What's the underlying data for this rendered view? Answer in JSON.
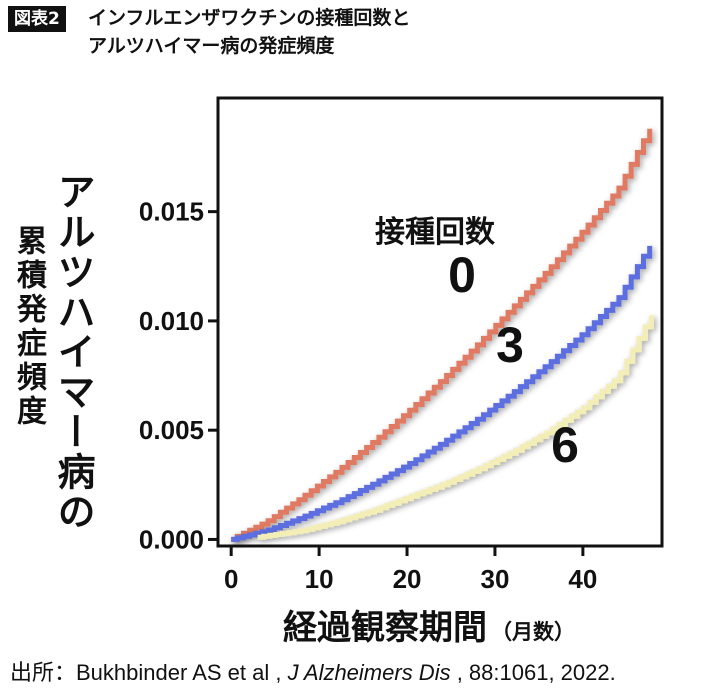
{
  "figure": {
    "tag": "図表2",
    "title_line1": "インフルエンザワクチンの接種回数と",
    "title_line2": "アルツハイマー病の発症頻度"
  },
  "source": {
    "prefix": "出所：Bukhbinder AS et al , ",
    "journal": "J Alzheimers Dis",
    "suffix": " , 88:1061, 2022."
  },
  "chart_data": {
    "type": "line",
    "ylabel_line1": "アルツハイマー病の",
    "ylabel_line2": "累積発症頻度",
    "xlabel": "経過観察期間",
    "xlabel_unit": "（月数）",
    "legend_title": "接種回数",
    "xlim": [
      -1.5,
      49
    ],
    "ylim": [
      -0.0003,
      0.0202
    ],
    "xticks": [
      0,
      10,
      20,
      30,
      40
    ],
    "xtick_labels": [
      "0",
      "10",
      "20",
      "30",
      "40"
    ],
    "yticks": [
      0.0,
      0.005,
      0.01,
      0.015
    ],
    "ytick_labels": [
      "0.000",
      "0.005",
      "0.010",
      "0.015"
    ],
    "series": [
      {
        "name": "0",
        "color": "#e07a64",
        "x": [
          0,
          4,
          8,
          12,
          16,
          20,
          24,
          28,
          32,
          36,
          40,
          44,
          48
        ],
        "y": [
          0.0,
          0.0008,
          0.0019,
          0.0031,
          0.0044,
          0.0058,
          0.0073,
          0.0089,
          0.0106,
          0.0123,
          0.0141,
          0.016,
          0.0191
        ]
      },
      {
        "name": "3",
        "color": "#5c6ee0",
        "x": [
          0,
          4,
          8,
          12,
          16,
          20,
          24,
          28,
          32,
          36,
          40,
          44,
          48
        ],
        "y": [
          0.0,
          0.0004,
          0.001,
          0.0017,
          0.0025,
          0.0034,
          0.0044,
          0.0055,
          0.0067,
          0.008,
          0.0094,
          0.011,
          0.0137
        ]
      },
      {
        "name": "6",
        "color": "#f3eeb6",
        "x": [
          3,
          8,
          12,
          16,
          20,
          24,
          28,
          32,
          36,
          40,
          44,
          48
        ],
        "y": [
          0.0001,
          0.0004,
          0.0008,
          0.0013,
          0.0019,
          0.0025,
          0.0032,
          0.004,
          0.0049,
          0.006,
          0.0074,
          0.0104
        ]
      }
    ]
  }
}
